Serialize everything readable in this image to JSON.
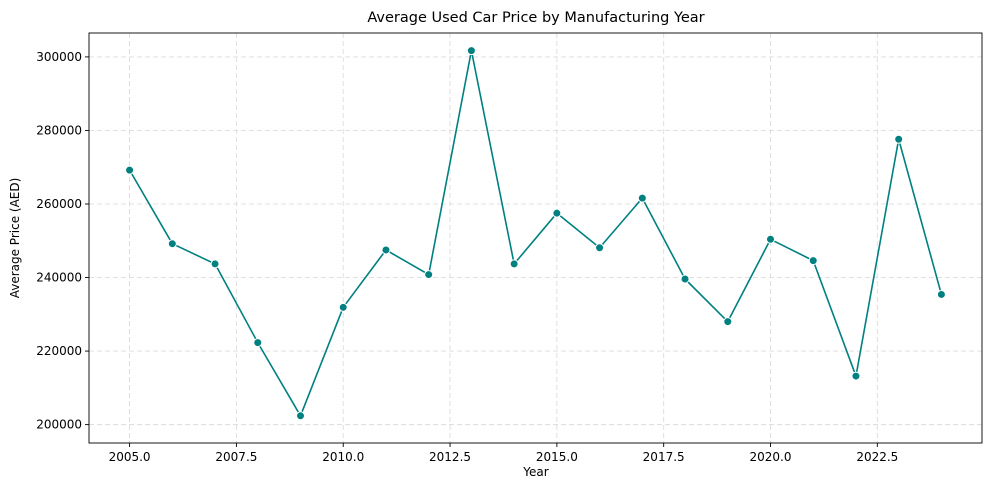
{
  "chart_data": {
    "type": "line",
    "title": "Average Used Car Price by Manufacturing Year",
    "xlabel": "Year",
    "ylabel": "Average Price (AED)",
    "xlim": [
      2004.05,
      2024.95
    ],
    "ylim": [
      195000,
      306500
    ],
    "xticks": [
      2005.0,
      2007.5,
      2010.0,
      2012.5,
      2015.0,
      2017.5,
      2020.0,
      2022.5
    ],
    "xtick_labels": [
      "2005.0",
      "2007.5",
      "2010.0",
      "2012.5",
      "2015.0",
      "2017.5",
      "2020.0",
      "2022.5"
    ],
    "yticks": [
      200000,
      220000,
      240000,
      260000,
      280000,
      300000
    ],
    "ytick_labels": [
      "200000",
      "220000",
      "240000",
      "260000",
      "280000",
      "300000"
    ],
    "grid": true,
    "color": "#008080",
    "marker": "circle",
    "series": [
      {
        "x": [
          2005,
          2006,
          2007,
          2008,
          2009,
          2010,
          2011,
          2012,
          2013,
          2014,
          2015,
          2016,
          2017,
          2018,
          2019,
          2020,
          2021,
          2022,
          2023,
          2024
        ],
        "values": [
          269200,
          249200,
          243700,
          222300,
          202400,
          231900,
          247500,
          240800,
          301700,
          243700,
          257500,
          248100,
          261600,
          239600,
          228000,
          250400,
          244600,
          213200,
          277600,
          235400
        ]
      }
    ]
  }
}
